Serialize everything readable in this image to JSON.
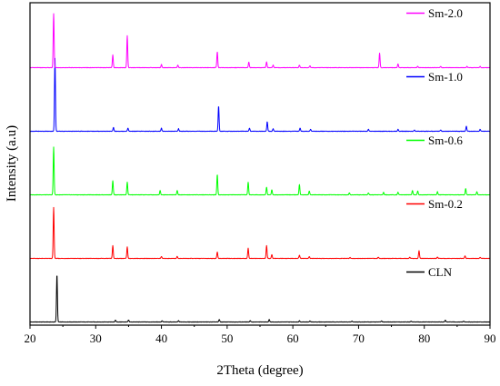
{
  "chart_data": {
    "type": "line",
    "title": "",
    "xlabel": "2Theta (degree)",
    "ylabel": "Intensity (a.u)",
    "xlim": [
      20,
      90
    ],
    "xticks": [
      20,
      30,
      40,
      50,
      60,
      70,
      80,
      90
    ],
    "y_ticks_shown": false,
    "grid": false,
    "legend_placement": "top-right of each stacked pattern",
    "series": [
      {
        "name": "CLN",
        "color": "#000000",
        "baseline": 0.05,
        "peaks": [
          [
            24.1,
            0.75
          ],
          [
            33.0,
            0.03
          ],
          [
            35.0,
            0.03
          ],
          [
            40.1,
            0.02
          ],
          [
            42.6,
            0.02
          ],
          [
            48.8,
            0.04
          ],
          [
            53.5,
            0.02
          ],
          [
            56.4,
            0.04
          ],
          [
            61.0,
            0.02
          ],
          [
            62.6,
            0.015
          ],
          [
            69.0,
            0.015
          ],
          [
            73.5,
            0.015
          ],
          [
            78.0,
            0.012
          ],
          [
            83.2,
            0.03
          ],
          [
            86.0,
            0.012
          ]
        ]
      },
      {
        "name": "Sm-0.2",
        "color": "#ff0000",
        "baseline": 1.05,
        "peaks": [
          [
            23.6,
            0.8
          ],
          [
            32.6,
            0.2
          ],
          [
            34.8,
            0.18
          ],
          [
            40.0,
            0.03
          ],
          [
            42.4,
            0.03
          ],
          [
            48.5,
            0.1
          ],
          [
            53.2,
            0.16
          ],
          [
            56.0,
            0.2
          ],
          [
            56.8,
            0.06
          ],
          [
            61.0,
            0.05
          ],
          [
            62.5,
            0.03
          ],
          [
            68.7,
            0.015
          ],
          [
            73.0,
            0.02
          ],
          [
            77.8,
            0.02
          ],
          [
            79.2,
            0.12
          ],
          [
            82.0,
            0.02
          ],
          [
            86.2,
            0.04
          ],
          [
            88.5,
            0.02
          ]
        ]
      },
      {
        "name": "Sm-0.6",
        "color": "#00ff00",
        "baseline": 2.05,
        "peaks": [
          [
            23.6,
            0.75
          ],
          [
            32.6,
            0.22
          ],
          [
            34.8,
            0.2
          ],
          [
            39.8,
            0.07
          ],
          [
            42.4,
            0.07
          ],
          [
            48.5,
            0.32
          ],
          [
            53.2,
            0.2
          ],
          [
            56.0,
            0.12
          ],
          [
            56.8,
            0.08
          ],
          [
            61.0,
            0.16
          ],
          [
            62.5,
            0.06
          ],
          [
            68.6,
            0.03
          ],
          [
            71.5,
            0.03
          ],
          [
            73.8,
            0.04
          ],
          [
            76.0,
            0.04
          ],
          [
            78.2,
            0.07
          ],
          [
            79.0,
            0.06
          ],
          [
            82.0,
            0.05
          ],
          [
            86.3,
            0.1
          ],
          [
            88.0,
            0.05
          ]
        ]
      },
      {
        "name": "Sm-1.0",
        "color": "#0000ff",
        "baseline": 3.05,
        "peaks": [
          [
            23.8,
            1.15
          ],
          [
            32.7,
            0.06
          ],
          [
            34.9,
            0.05
          ],
          [
            40.0,
            0.05
          ],
          [
            42.6,
            0.04
          ],
          [
            48.7,
            0.4
          ],
          [
            53.4,
            0.05
          ],
          [
            56.1,
            0.15
          ],
          [
            57.0,
            0.04
          ],
          [
            61.1,
            0.05
          ],
          [
            62.7,
            0.03
          ],
          [
            71.5,
            0.03
          ],
          [
            76.0,
            0.03
          ],
          [
            78.5,
            0.02
          ],
          [
            82.5,
            0.02
          ],
          [
            86.4,
            0.08
          ],
          [
            88.5,
            0.03
          ]
        ]
      },
      {
        "name": "Sm-2.0",
        "color": "#ff00ff",
        "baseline": 4.05,
        "peaks": [
          [
            23.6,
            0.85
          ],
          [
            32.6,
            0.2
          ],
          [
            34.8,
            0.5
          ],
          [
            40.0,
            0.05
          ],
          [
            42.5,
            0.04
          ],
          [
            48.5,
            0.25
          ],
          [
            53.3,
            0.09
          ],
          [
            56.0,
            0.09
          ],
          [
            57.0,
            0.04
          ],
          [
            61.0,
            0.04
          ],
          [
            62.6,
            0.03
          ],
          [
            73.2,
            0.23
          ],
          [
            76.0,
            0.06
          ],
          [
            79.0,
            0.02
          ],
          [
            82.5,
            0.02
          ],
          [
            86.5,
            0.02
          ],
          [
            88.5,
            0.02
          ]
        ]
      }
    ]
  }
}
